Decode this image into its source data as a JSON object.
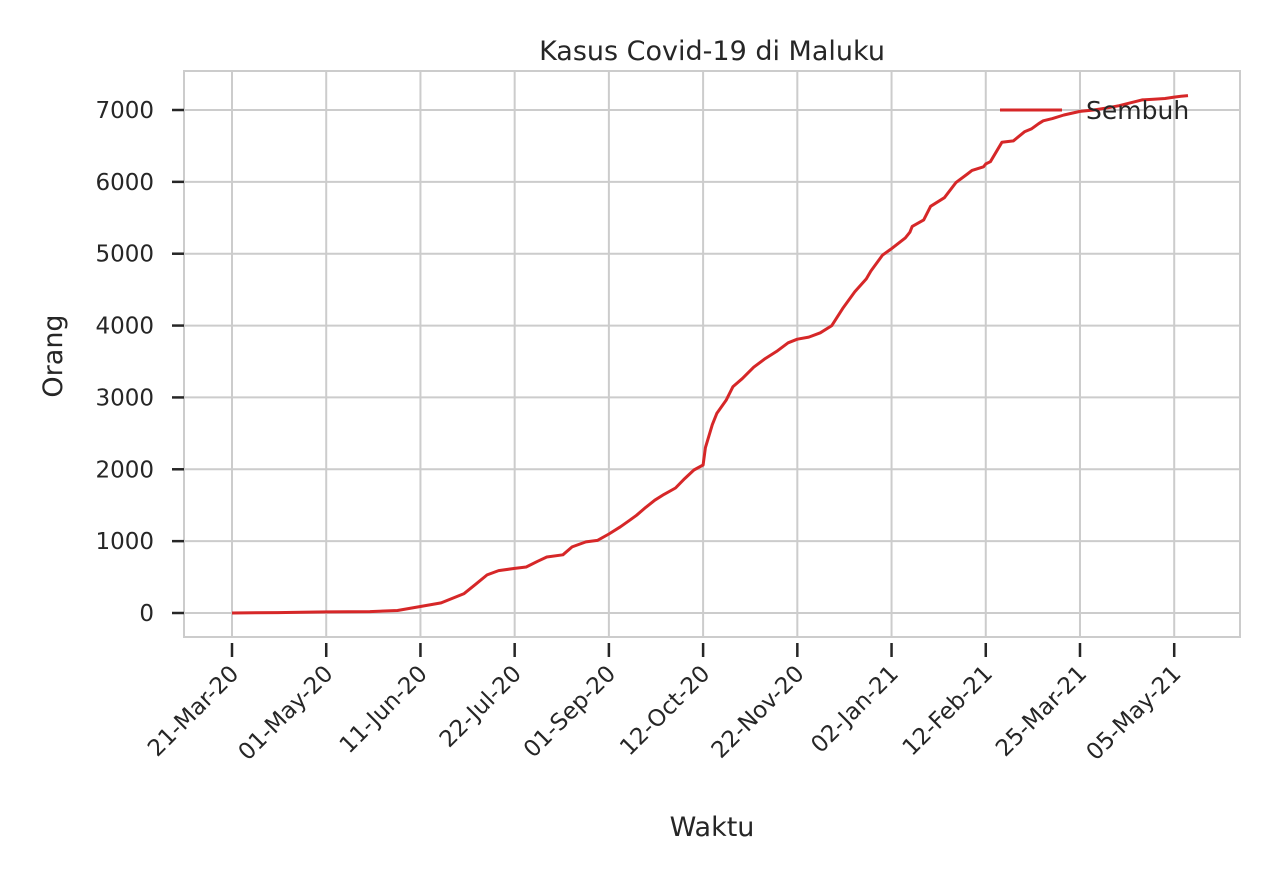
{
  "chart_data": {
    "type": "line",
    "title": "Kasus Covid-19 di Maluku",
    "xlabel": "Waktu",
    "ylabel": "Orang",
    "x_start": "2020-03-21",
    "x_end": "2021-05-11",
    "ylim": [
      -330,
      7600
    ],
    "yticks": [
      0,
      1000,
      2000,
      3000,
      4000,
      5000,
      6000,
      7000
    ],
    "xticks": [
      "21-Mar-20",
      "01-May-20",
      "11-Jun-20",
      "22-Jul-20",
      "01-Sep-20",
      "12-Oct-20",
      "22-Nov-20",
      "02-Jan-21",
      "12-Feb-21",
      "25-Mar-21",
      "05-May-21"
    ],
    "grid": true,
    "legend_position": "top-right",
    "colors": {
      "series": "#d62728",
      "grid": "#cccccc",
      "frame": "#cccccc",
      "text": "#262626"
    },
    "series": [
      {
        "name": "Sembuh",
        "x": [
          "2020-03-21",
          "2020-04-10",
          "2020-04-20",
          "2020-05-01",
          "2020-05-20",
          "2020-06-01",
          "2020-06-11",
          "2020-06-20",
          "2020-06-30",
          "2020-07-05",
          "2020-07-10",
          "2020-07-15",
          "2020-07-22",
          "2020-07-27",
          "2020-08-01",
          "2020-08-05",
          "2020-08-12",
          "2020-08-16",
          "2020-08-22",
          "2020-08-27",
          "2020-09-01",
          "2020-09-06",
          "2020-09-10",
          "2020-09-13",
          "2020-09-17",
          "2020-09-21",
          "2020-09-25",
          "2020-09-30",
          "2020-10-04",
          "2020-10-08",
          "2020-10-12",
          "2020-10-13",
          "2020-10-16",
          "2020-10-18",
          "2020-10-22",
          "2020-10-25",
          "2020-10-29",
          "2020-11-03",
          "2020-11-08",
          "2020-11-13",
          "2020-11-18",
          "2020-11-22",
          "2020-11-27",
          "2020-12-02",
          "2020-12-07",
          "2020-12-12",
          "2020-12-17",
          "2020-12-22",
          "2020-12-24",
          "2020-12-29",
          "2021-01-02",
          "2021-01-08",
          "2021-01-10",
          "2021-01-11",
          "2021-01-16",
          "2021-01-19",
          "2021-01-25",
          "2021-01-30",
          "2021-02-04",
          "2021-02-06",
          "2021-02-11",
          "2021-02-12",
          "2021-02-14",
          "2021-02-19",
          "2021-02-24",
          "2021-03-01",
          "2021-03-04",
          "2021-03-07",
          "2021-03-09",
          "2021-03-13",
          "2021-03-18",
          "2021-03-25",
          "2021-03-31",
          "2021-04-06",
          "2021-04-11",
          "2021-04-16",
          "2021-04-21",
          "2021-04-26",
          "2021-05-01",
          "2021-05-05",
          "2021-05-08",
          "2021-05-11"
        ],
        "values": [
          0,
          5,
          10,
          15,
          20,
          35,
          90,
          140,
          270,
          400,
          530,
          590,
          620,
          640,
          720,
          780,
          810,
          920,
          990,
          1010,
          1100,
          1200,
          1290,
          1360,
          1470,
          1570,
          1650,
          1740,
          1870,
          1990,
          2060,
          2300,
          2620,
          2780,
          2960,
          3150,
          3260,
          3420,
          3540,
          3640,
          3760,
          3810,
          3840,
          3900,
          4000,
          4250,
          4470,
          4650,
          4760,
          4980,
          5070,
          5220,
          5300,
          5380,
          5470,
          5660,
          5780,
          5990,
          6110,
          6160,
          6210,
          6250,
          6280,
          6550,
          6570,
          6700,
          6740,
          6810,
          6850,
          6880,
          6930,
          6980,
          7000,
          7030,
          7060,
          7100,
          7140,
          7150,
          7160,
          7180,
          7190,
          7200
        ]
      }
    ]
  }
}
